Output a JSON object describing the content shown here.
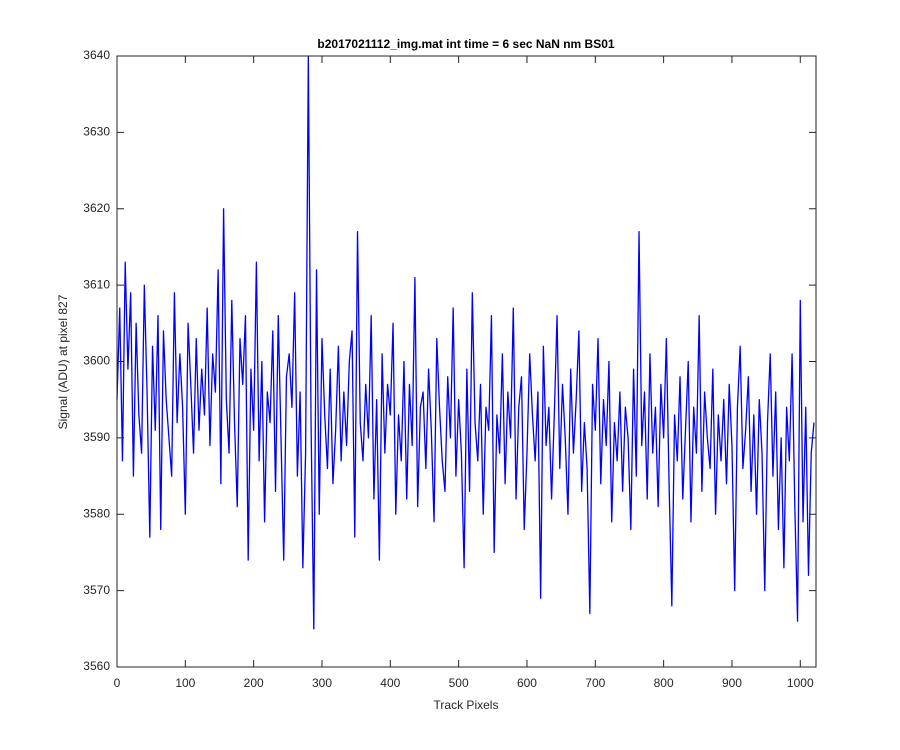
{
  "chart_data": {
    "type": "line",
    "title": "b2017021112_img.mat int time = 6 sec  NaN nm BS01",
    "x_label": "Track Pixels",
    "y_label": "Signal (ADU) at pixel 827",
    "xlim": [
      0,
      1023
    ],
    "ylim": [
      3560,
      3640
    ],
    "xticks": [
      0,
      100,
      200,
      300,
      400,
      500,
      600,
      700,
      800,
      900,
      1000
    ],
    "yticks": [
      3560,
      3570,
      3580,
      3590,
      3600,
      3610,
      3620,
      3630,
      3640
    ],
    "x": [
      0,
      4,
      8,
      12,
      16,
      20,
      24,
      28,
      32,
      36,
      40,
      44,
      48,
      52,
      56,
      60,
      64,
      68,
      72,
      76,
      80,
      84,
      88,
      92,
      96,
      100,
      104,
      108,
      112,
      116,
      120,
      124,
      128,
      132,
      136,
      140,
      144,
      148,
      152,
      156,
      160,
      164,
      168,
      172,
      176,
      180,
      184,
      188,
      192,
      196,
      200,
      204,
      208,
      212,
      216,
      220,
      224,
      228,
      232,
      236,
      240,
      244,
      248,
      252,
      256,
      260,
      264,
      268,
      272,
      276,
      280,
      284,
      288,
      292,
      296,
      300,
      304,
      308,
      312,
      316,
      320,
      324,
      328,
      332,
      336,
      340,
      344,
      348,
      352,
      356,
      360,
      364,
      368,
      372,
      376,
      380,
      384,
      388,
      392,
      396,
      400,
      404,
      408,
      412,
      416,
      420,
      424,
      428,
      432,
      436,
      440,
      444,
      448,
      452,
      456,
      460,
      464,
      468,
      472,
      476,
      480,
      484,
      488,
      492,
      496,
      500,
      504,
      508,
      512,
      516,
      520,
      524,
      528,
      532,
      536,
      540,
      544,
      548,
      552,
      556,
      560,
      564,
      568,
      572,
      576,
      580,
      584,
      588,
      592,
      596,
      600,
      604,
      608,
      612,
      616,
      620,
      624,
      628,
      632,
      636,
      640,
      644,
      648,
      652,
      656,
      660,
      664,
      668,
      672,
      676,
      680,
      684,
      688,
      692,
      696,
      700,
      704,
      708,
      712,
      716,
      720,
      724,
      728,
      732,
      736,
      740,
      744,
      748,
      752,
      756,
      760,
      764,
      768,
      772,
      776,
      780,
      784,
      788,
      792,
      796,
      800,
      804,
      808,
      812,
      816,
      820,
      824,
      828,
      832,
      836,
      840,
      844,
      848,
      852,
      856,
      860,
      864,
      868,
      872,
      876,
      880,
      884,
      888,
      892,
      896,
      900,
      904,
      908,
      912,
      916,
      920,
      924,
      928,
      932,
      936,
      940,
      944,
      948,
      952,
      956,
      960,
      964,
      968,
      972,
      976,
      980,
      984,
      988,
      992,
      996,
      1000,
      1004,
      1008,
      1012,
      1016,
      1020
    ],
    "series": [
      {
        "color": "#0000ff",
        "values": [
          3595,
          3607,
          3587,
          3613,
          3599,
          3609,
          3585,
          3605,
          3593,
          3588,
          3610,
          3596,
          3577,
          3602,
          3591,
          3606,
          3578,
          3604,
          3595,
          3590,
          3585,
          3609,
          3592,
          3601,
          3594,
          3580,
          3605,
          3597,
          3588,
          3603,
          3591,
          3599,
          3593,
          3607,
          3589,
          3601,
          3596,
          3612,
          3584,
          3620,
          3595,
          3588,
          3608,
          3592,
          3581,
          3603,
          3597,
          3606,
          3574,
          3599,
          3591,
          3613,
          3587,
          3600,
          3579,
          3596,
          3592,
          3604,
          3583,
          3606,
          3590,
          3574,
          3598,
          3601,
          3594,
          3609,
          3585,
          3596,
          3573,
          3588,
          3640,
          3592,
          3565,
          3612,
          3580,
          3603,
          3593,
          3586,
          3599,
          3584,
          3591,
          3602,
          3587,
          3596,
          3589,
          3600,
          3604,
          3577,
          3617,
          3592,
          3587,
          3597,
          3590,
          3606,
          3582,
          3595,
          3574,
          3601,
          3588,
          3597,
          3593,
          3605,
          3580,
          3593,
          3587,
          3600,
          3582,
          3597,
          3589,
          3611,
          3581,
          3594,
          3596,
          3586,
          3599,
          3591,
          3579,
          3603,
          3594,
          3587,
          3583,
          3598,
          3590,
          3607,
          3585,
          3595,
          3588,
          3573,
          3599,
          3583,
          3609,
          3592,
          3587,
          3597,
          3580,
          3594,
          3591,
          3606,
          3575,
          3593,
          3588,
          3601,
          3584,
          3596,
          3590,
          3607,
          3582,
          3594,
          3598,
          3578,
          3588,
          3601,
          3593,
          3587,
          3596,
          3569,
          3602,
          3589,
          3594,
          3582,
          3593,
          3606,
          3586,
          3597,
          3590,
          3580,
          3599,
          3588,
          3595,
          3604,
          3583,
          3592,
          3586,
          3567,
          3597,
          3591,
          3603,
          3584,
          3595,
          3589,
          3600,
          3579,
          3592,
          3587,
          3596,
          3583,
          3594,
          3590,
          3578,
          3599,
          3585,
          3617,
          3589,
          3596,
          3582,
          3601,
          3588,
          3594,
          3581,
          3597,
          3590,
          3603,
          3584,
          3568,
          3593,
          3587,
          3598,
          3582,
          3591,
          3600,
          3579,
          3594,
          3588,
          3606,
          3583,
          3596,
          3590,
          3586,
          3599,
          3580,
          3593,
          3587,
          3595,
          3584,
          3597,
          3589,
          3570,
          3594,
          3602,
          3586,
          3591,
          3598,
          3583,
          3593,
          3580,
          3595,
          3588,
          3570,
          3592,
          3601,
          3585,
          3596,
          3578,
          3590,
          3573,
          3594,
          3587,
          3601,
          3581,
          3566,
          3608,
          3579,
          3594,
          3572,
          3588,
          3592
        ]
      }
    ]
  }
}
